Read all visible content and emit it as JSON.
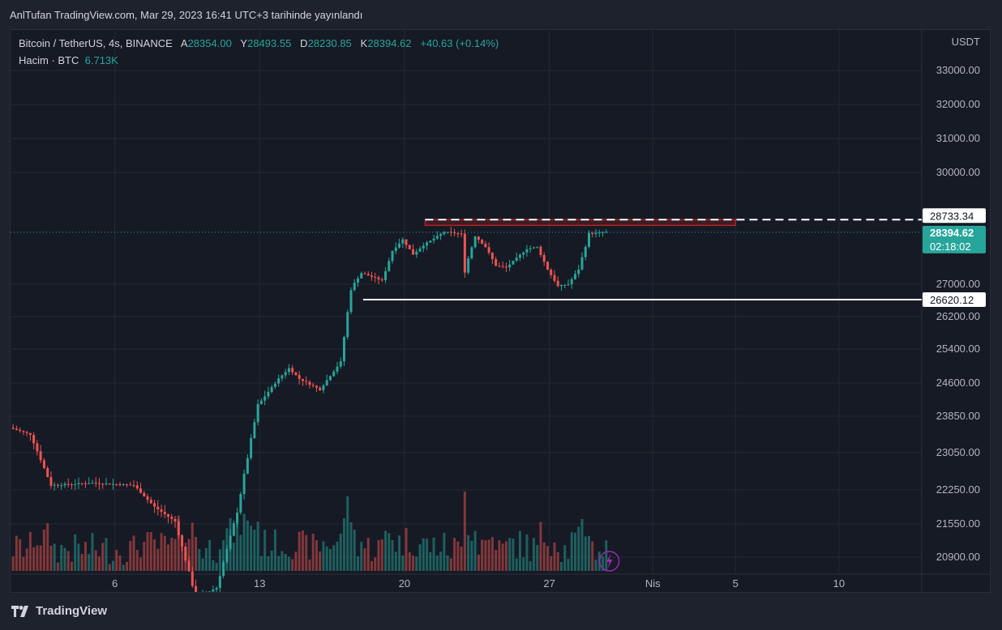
{
  "header": {
    "text": "AnlTufan TradingView.com, Mar 29, 2023 16:41 UTC+3 tarihinde yayınlandı"
  },
  "legend": {
    "symbol": "Bitcoin / TetherUS, 4s, BINANCE",
    "open_label": "A",
    "open": "28354.00",
    "high_label": "Y",
    "high": "28493.55",
    "low_label": "D",
    "low": "28230.85",
    "close_label": "K",
    "close": "28394.62",
    "change": "+40.63 (+0.14%)",
    "volume_label": "Hacim · BTC",
    "volume": "6.713K"
  },
  "footer": {
    "brand": "TradingView"
  },
  "colors": {
    "up": "#26a69a",
    "down": "#ef5350",
    "background": "#161a25",
    "text": "#b2b5be"
  },
  "chart_data": {
    "type": "candlestick",
    "title": "Bitcoin / TetherUS, 4s, BINANCE",
    "currency": "USDT",
    "y_ticks": [
      "33000.00",
      "32000.00",
      "31000.00",
      "30000.00",
      "27000.00",
      "26200.00",
      "25400.00",
      "24600.00",
      "23850.00",
      "23050.00",
      "22250.00",
      "21550.00",
      "20900.00"
    ],
    "x_ticks": [
      {
        "label": "6",
        "date": "2023-03-06"
      },
      {
        "label": "13",
        "date": "2023-03-13"
      },
      {
        "label": "20",
        "date": "2023-03-20"
      },
      {
        "label": "27",
        "date": "2023-03-27"
      },
      {
        "label": "Nis",
        "date": "2023-04-01"
      },
      {
        "label": "5",
        "date": "2023-04-05"
      },
      {
        "label": "10",
        "date": "2023-04-10"
      }
    ],
    "x_range": [
      "2023-03-01",
      "2023-04-14"
    ],
    "resistance": {
      "value": 28733.34,
      "label": "28733.34",
      "start": "2023-03-21",
      "style": "dashed"
    },
    "resistance_zone": {
      "low": 28580,
      "high": 28733.34,
      "start": "2023-03-21",
      "end": "2023-04-05"
    },
    "support": {
      "value": 26620.12,
      "label": "26620.12",
      "start": "2023-03-18"
    },
    "last_price": {
      "value": 28394.62,
      "label": "28394.62",
      "countdown": "02:18:02"
    },
    "price_path": [
      {
        "date": "2023-03-01",
        "price": 23600
      },
      {
        "date": "2023-03-02",
        "price": 23450
      },
      {
        "date": "2023-03-03",
        "price": 22350
      },
      {
        "date": "2023-03-05",
        "price": 22400
      },
      {
        "date": "2023-03-07",
        "price": 22350
      },
      {
        "date": "2023-03-08",
        "price": 21900
      },
      {
        "date": "2023-03-09",
        "price": 21600
      },
      {
        "date": "2023-03-10",
        "price": 20100
      },
      {
        "date": "2023-03-11",
        "price": 20300
      },
      {
        "date": "2023-03-12",
        "price": 21800
      },
      {
        "date": "2023-03-13",
        "price": 24100
      },
      {
        "date": "2023-03-14",
        "price": 24700
      },
      {
        "date": "2023-03-14T12:00",
        "price": 24950
      },
      {
        "date": "2023-03-15",
        "price": 24700
      },
      {
        "date": "2023-03-16",
        "price": 24450
      },
      {
        "date": "2023-03-17",
        "price": 25100
      },
      {
        "date": "2023-03-17T12:00",
        "price": 26900
      },
      {
        "date": "2023-03-18",
        "price": 27300
      },
      {
        "date": "2023-03-19",
        "price": 27100
      },
      {
        "date": "2023-03-19T12:00",
        "price": 27900
      },
      {
        "date": "2023-03-20",
        "price": 28200
      },
      {
        "date": "2023-03-20T12:00",
        "price": 27800
      },
      {
        "date": "2023-03-21",
        "price": 28050
      },
      {
        "date": "2023-03-22",
        "price": 28400
      },
      {
        "date": "2023-03-22T20:00",
        "price": 28350
      },
      {
        "date": "2023-03-23",
        "price": 27400
      },
      {
        "date": "2023-03-23T12:00",
        "price": 28300
      },
      {
        "date": "2023-03-24",
        "price": 28000
      },
      {
        "date": "2023-03-24T12:00",
        "price": 27500
      },
      {
        "date": "2023-03-25",
        "price": 27450
      },
      {
        "date": "2023-03-26",
        "price": 27950
      },
      {
        "date": "2023-03-26T12:00",
        "price": 28000
      },
      {
        "date": "2023-03-27",
        "price": 27400
      },
      {
        "date": "2023-03-27T12:00",
        "price": 26950
      },
      {
        "date": "2023-03-28",
        "price": 27000
      },
      {
        "date": "2023-03-28T12:00",
        "price": 27400
      },
      {
        "date": "2023-03-29",
        "price": 28350
      },
      {
        "date": "2023-03-29T16:00",
        "price": 28394.62
      }
    ],
    "volume_series": {
      "name": "Hacim · BTC",
      "last": "6.713K"
    }
  }
}
